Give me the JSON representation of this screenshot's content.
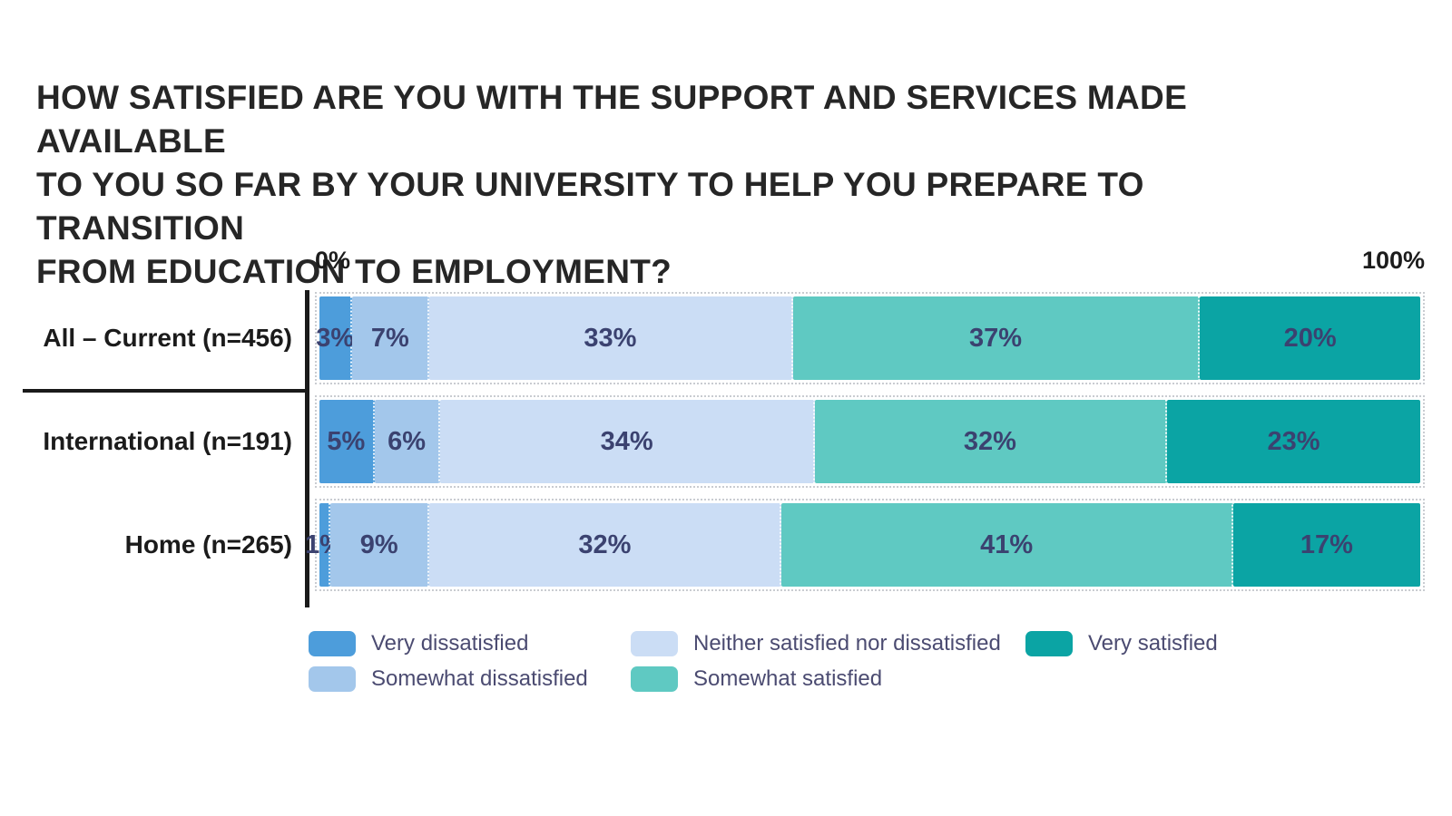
{
  "title_lines": [
    "HOW SATISFIED ARE YOU WITH THE SUPPORT AND SERVICES MADE AVAILABLE",
    "TO YOU SO FAR BY YOUR UNIVERSITY TO HELP YOU PREPARE TO TRANSITION",
    "FROM EDUCATION TO EMPLOYMENT?"
  ],
  "axis": {
    "min_label": "0%",
    "max_label": "100%"
  },
  "chart_data": {
    "type": "bar",
    "stacked": true,
    "orientation": "horizontal",
    "xlim": [
      0,
      100
    ],
    "value_suffix": "%",
    "grid": false,
    "legend_position": "bottom",
    "categories": [
      "All – Current (n=456)",
      "International (n=191)",
      "Home (n=265)"
    ],
    "series": [
      {
        "name": "Very dissatisfied",
        "color": "#4D9DDB",
        "values": [
          3,
          5,
          1
        ]
      },
      {
        "name": "Somewhat dissatisfied",
        "color": "#A3C7EB",
        "values": [
          7,
          6,
          9
        ]
      },
      {
        "name": "Neither satisfied nor dissatisfied",
        "color": "#CBDDF5",
        "values": [
          33,
          34,
          32
        ]
      },
      {
        "name": "Somewhat satisfied",
        "color": "#5FC9C2",
        "values": [
          37,
          32,
          41
        ]
      },
      {
        "name": "Very satisfied",
        "color": "#0BA4A4",
        "values": [
          20,
          23,
          17
        ]
      }
    ]
  },
  "legend": {
    "rows": [
      [
        "Very dissatisfied",
        "Neither satisfied nor dissatisfied",
        "Very satisfied"
      ],
      [
        "Somewhat dissatisfied",
        "Somewhat satisfied"
      ]
    ]
  },
  "colors": {
    "title_text": "#262626",
    "category_text": "#1B1B1B",
    "bar_value_text": "#3B4270",
    "legend_text": "#4B4B71",
    "axis_line": "#1A1A1A",
    "track_border": "#C9CCD1"
  }
}
